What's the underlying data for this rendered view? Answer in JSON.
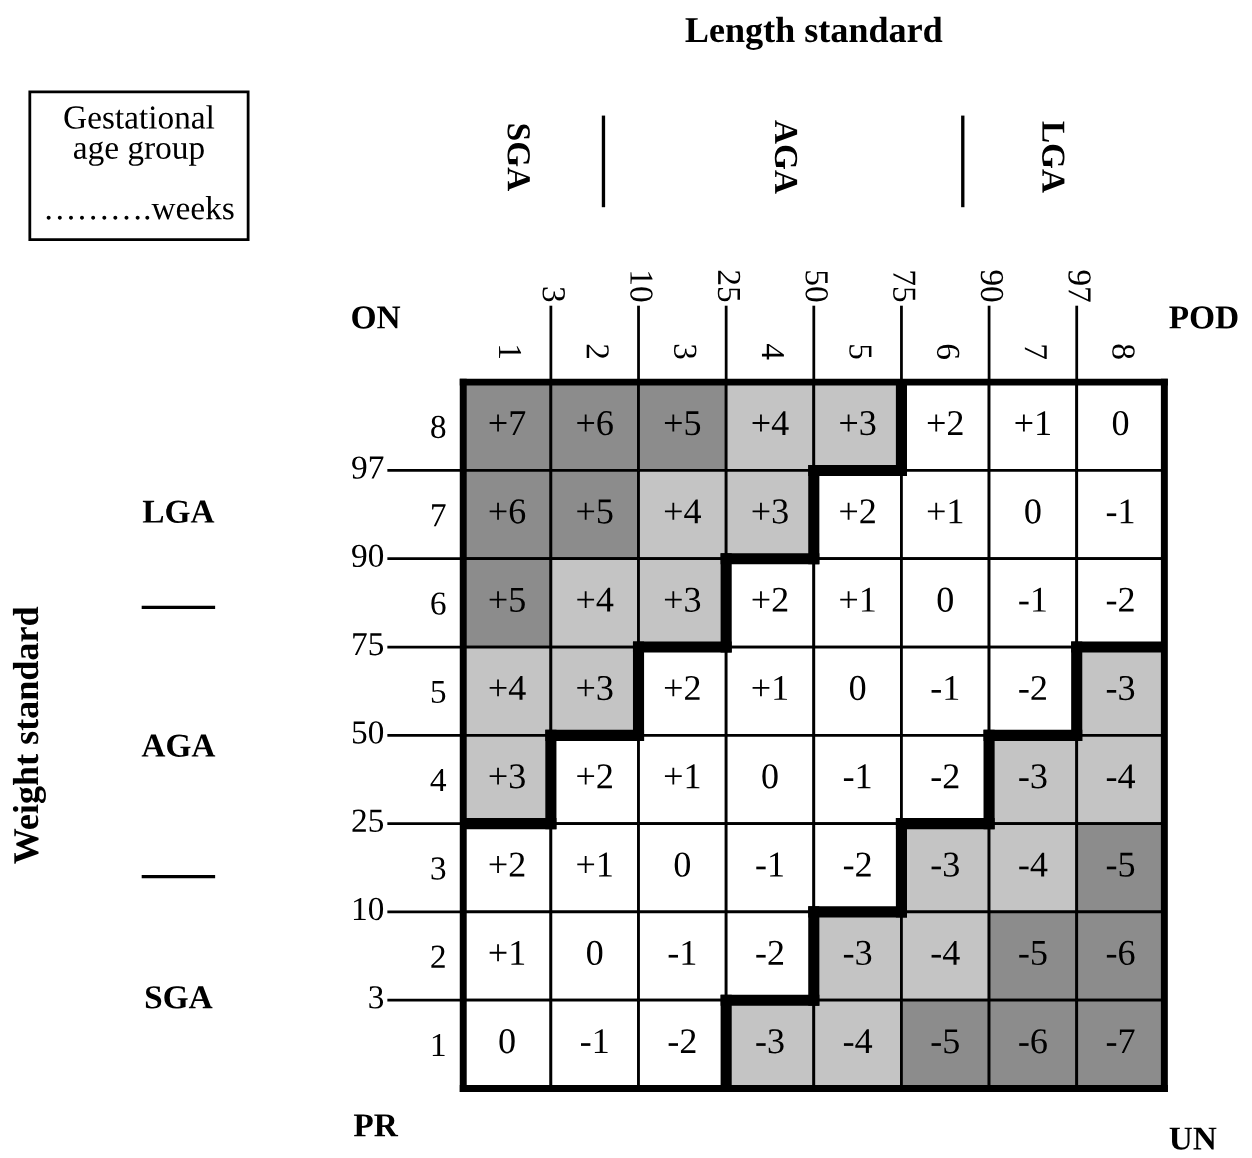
{
  "chart_data": {
    "type": "heatmap",
    "data_labels": true,
    "categories": [
      "1",
      "2",
      "3",
      "4",
      "5",
      "6",
      "7",
      "8"
    ],
    "y_categories": [
      "8",
      "7",
      "6",
      "5",
      "4",
      "3",
      "2",
      "1"
    ],
    "cells": [
      [
        7,
        6,
        5,
        4,
        3,
        2,
        1,
        0
      ],
      [
        6,
        5,
        4,
        3,
        2,
        1,
        0,
        -1
      ],
      [
        5,
        4,
        3,
        2,
        1,
        0,
        -1,
        -2
      ],
      [
        4,
        3,
        2,
        1,
        0,
        -1,
        -2,
        -3
      ],
      [
        3,
        2,
        1,
        0,
        -1,
        -2,
        -3,
        -4
      ],
      [
        2,
        1,
        0,
        -1,
        -2,
        -3,
        -4,
        -5
      ],
      [
        1,
        0,
        -1,
        -2,
        -3,
        -4,
        -5,
        -6
      ],
      [
        0,
        -1,
        -2,
        -3,
        -4,
        -5,
        -6,
        -7
      ]
    ],
    "cell_labels": [
      [
        "+7",
        "+6",
        "+5",
        "+4",
        "+3",
        "+2",
        "+1",
        "0"
      ],
      [
        "+6",
        "+5",
        "+4",
        "+3",
        "+2",
        "+1",
        "0",
        "-1"
      ],
      [
        "+5",
        "+4",
        "+3",
        "+2",
        "+1",
        "0",
        "-1",
        "-2"
      ],
      [
        "+4",
        "+3",
        "+2",
        "+1",
        "0",
        "-1",
        "-2",
        "-3"
      ],
      [
        "+3",
        "+2",
        "+1",
        "0",
        "-1",
        "-2",
        "-3",
        "-4"
      ],
      [
        "+2",
        "+1",
        "0",
        "-1",
        "-2",
        "-3",
        "-4",
        "-5"
      ],
      [
        "+1",
        "0",
        "-1",
        "-2",
        "-3",
        "-4",
        "-5",
        "-6"
      ],
      [
        "0",
        "-1",
        "-2",
        "-3",
        "-4",
        "-5",
        "-6",
        "-7"
      ]
    ],
    "annotations": [
      "Gestational\nage group\n\n……….weeks",
      "ON",
      "POD",
      "PR",
      "UN",
      "SGA",
      "AGA",
      "LGA",
      "LGA",
      "AGA",
      "SGA",
      "3",
      "10",
      "25",
      "50",
      "75",
      "90",
      "97",
      "97",
      "90",
      "75",
      "50",
      "25",
      "10",
      "3",
      "Length standard",
      "Weight standard"
    ]
  }
}
